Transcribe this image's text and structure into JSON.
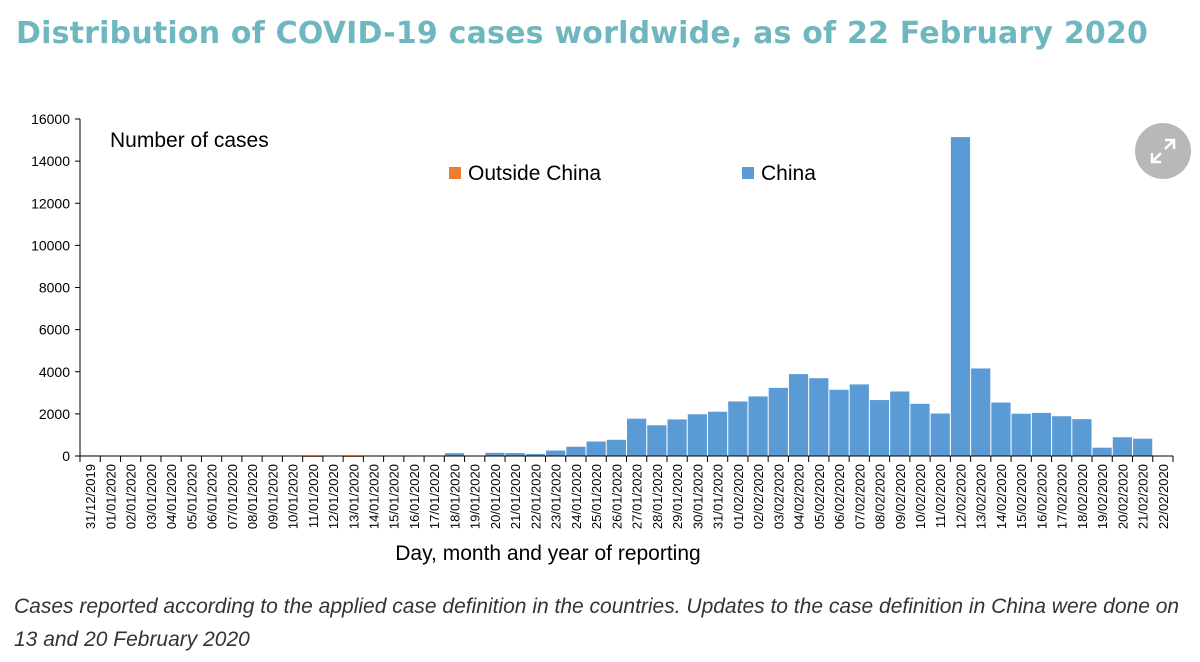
{
  "title": "Distribution of COVID-19 cases worldwide, as of 22 February 2020",
  "caption": "Cases reported according to the applied case definition in the countries. Updates to the case definition in China were done on 13 and 20 February 2020",
  "expand_icon": "expand-arrows-icon",
  "colors": {
    "title": "#6fb7bf",
    "china": "#5b9bd5",
    "outside_china": "#ed7d31",
    "expand_button": "#b8b8b8"
  },
  "chart_data": {
    "type": "bar",
    "stacked": true,
    "ylabel": "Number of cases",
    "xlabel": "Day, month and year of reporting",
    "ylim": [
      0,
      16000
    ],
    "yticks": [
      0,
      2000,
      4000,
      6000,
      8000,
      10000,
      12000,
      14000,
      16000
    ],
    "grid": false,
    "legend_position": "top",
    "categories": [
      "31/12/2019",
      "01/01/2020",
      "02/01/2020",
      "03/01/2020",
      "04/01/2020",
      "05/01/2020",
      "06/01/2020",
      "07/01/2020",
      "08/01/2020",
      "09/01/2020",
      "10/01/2020",
      "11/01/2020",
      "12/01/2020",
      "13/01/2020",
      "14/01/2020",
      "15/01/2020",
      "16/01/2020",
      "17/01/2020",
      "18/01/2020",
      "19/01/2020",
      "20/01/2020",
      "21/01/2020",
      "22/01/2020",
      "23/01/2020",
      "24/01/2020",
      "25/01/2020",
      "26/01/2020",
      "27/01/2020",
      "28/01/2020",
      "29/01/2020",
      "30/01/2020",
      "31/01/2020",
      "01/02/2020",
      "02/02/2020",
      "03/02/2020",
      "04/02/2020",
      "05/02/2020",
      "06/02/2020",
      "07/02/2020",
      "08/02/2020",
      "09/02/2020",
      "10/02/2020",
      "11/02/2020",
      "12/02/2020",
      "13/02/2020",
      "14/02/2020",
      "15/02/2020",
      "16/02/2020",
      "17/02/2020",
      "18/02/2020",
      "19/02/2020",
      "20/02/2020",
      "21/02/2020",
      "22/02/2020"
    ],
    "series": [
      {
        "name": "China",
        "color": "#5b9bd5",
        "values": [
          27,
          0,
          0,
          17,
          0,
          15,
          0,
          0,
          0,
          0,
          0,
          0,
          0,
          0,
          0,
          0,
          4,
          17,
          136,
          19,
          151,
          140,
          97,
          259,
          441,
          688,
          769,
          1771,
          1459,
          1737,
          1982,
          2102,
          2590,
          2829,
          3235,
          3887,
          3694,
          3143,
          3399,
          2656,
          3062,
          2478,
          2016,
          15141,
          4156,
          2538,
          2007,
          2048,
          1888,
          1749,
          394,
          889,
          823,
          0
        ]
      },
      {
        "name": "Outside China",
        "color": "#ed7d31",
        "values": [
          0,
          0,
          0,
          0,
          0,
          0,
          0,
          0,
          0,
          0,
          0,
          1,
          0,
          1,
          0,
          0,
          0,
          0,
          0,
          0,
          0,
          1,
          0,
          0,
          0,
          0,
          0,
          0,
          0,
          0,
          0,
          0,
          0,
          0,
          0,
          0,
          0,
          0,
          0,
          0,
          0,
          0,
          0,
          0,
          0,
          0,
          0,
          0,
          0,
          0,
          0,
          0,
          0,
          0
        ]
      }
    ]
  }
}
